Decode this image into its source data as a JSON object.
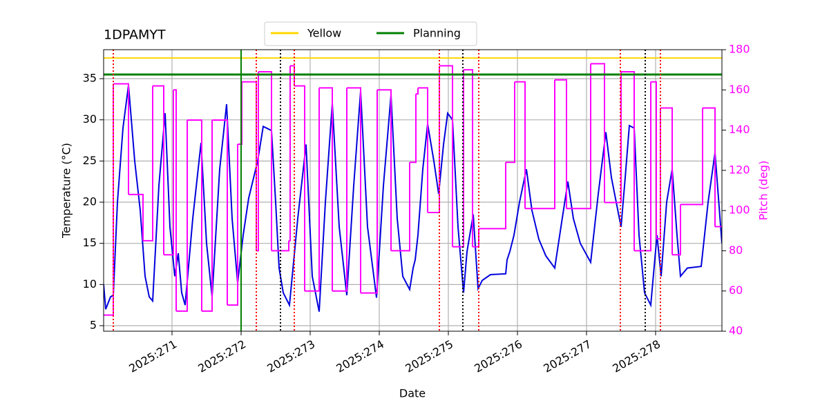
{
  "chart_data": {
    "type": "line",
    "title": "1DPAMYT",
    "x_label": "Date",
    "y_label": "Temperature (°C)",
    "y2_label": "Pitch (deg)",
    "xlim": [
      270.01,
      278.96
    ],
    "xticks": [
      {
        "value": 271,
        "label": "2025:271"
      },
      {
        "value": 272,
        "label": "2025:272"
      },
      {
        "value": 273,
        "label": "2025:273"
      },
      {
        "value": 274,
        "label": "2025:274"
      },
      {
        "value": 275,
        "label": "2025:275"
      },
      {
        "value": 276,
        "label": "2025:276"
      },
      {
        "value": 277,
        "label": "2025:277"
      },
      {
        "value": 278,
        "label": "2025:278"
      }
    ],
    "ylim": [
      4.33,
      38.52
    ],
    "yticks": [
      5,
      10,
      15,
      20,
      25,
      30,
      35
    ],
    "y2lim": [
      40,
      180
    ],
    "y2ticks": [
      40,
      60,
      80,
      100,
      120,
      140,
      160,
      180
    ],
    "grid": true,
    "legend": "upper center",
    "series": [
      {
        "color": "#0000dd",
        "step": false,
        "x": [
          270.01,
          270.04,
          270.11,
          270.15,
          270.21,
          270.29,
          270.37,
          270.46,
          270.54,
          270.61,
          270.67,
          270.72,
          270.81,
          270.9,
          270.97,
          271.04,
          271.09,
          271.14,
          271.19,
          271.3,
          271.42,
          271.5,
          271.58,
          271.69,
          271.79,
          271.87,
          271.95,
          272.03,
          272.11,
          272.24,
          272.32,
          272.44,
          272.5,
          272.55,
          272.61,
          272.7,
          272.82,
          272.94,
          273.03,
          273.13,
          273.22,
          273.32,
          273.42,
          273.53,
          273.63,
          273.73,
          273.83,
          273.96,
          274.06,
          274.17,
          274.26,
          274.34,
          274.44,
          274.49,
          274.52,
          274.56,
          274.63,
          274.7,
          274.79,
          274.86,
          274.93,
          274.99,
          275.06,
          275.14,
          275.22,
          275.27,
          275.36,
          275.43,
          275.49,
          275.61,
          275.83,
          275.85,
          275.89,
          275.95,
          276.03,
          276.13,
          276.21,
          276.31,
          276.41,
          276.54,
          276.63,
          276.73,
          276.81,
          276.91,
          277.06,
          277.17,
          277.28,
          277.36,
          277.5,
          277.56,
          277.62,
          277.69,
          277.76,
          277.84,
          277.93,
          278.02,
          278.08,
          278.16,
          278.24,
          278.31,
          278.36,
          278.46,
          278.66,
          278.76,
          278.86,
          278.96
        ],
        "values": [
          10,
          7,
          8.5,
          8.7,
          20,
          29,
          34.2,
          25,
          19,
          11,
          8.5,
          8,
          22,
          30.8,
          17,
          11,
          13.8,
          9,
          7.5,
          18,
          27.2,
          15,
          8.5,
          24,
          31.9,
          18,
          10.2,
          16,
          20.5,
          25,
          29.2,
          28.7,
          20,
          12,
          9,
          7.5,
          18,
          27,
          11,
          6.7,
          20,
          32,
          17,
          8.7,
          22,
          33.5,
          17,
          8.4,
          22,
          33,
          18,
          11,
          9.4,
          12,
          13,
          16,
          24,
          29.5,
          25,
          21,
          27,
          30.8,
          30,
          17,
          9,
          14,
          18.5,
          9.5,
          10.5,
          11.2,
          11.3,
          13,
          14,
          16,
          20,
          24,
          19,
          15.5,
          13.5,
          12,
          17,
          22.5,
          18,
          15,
          12.7,
          21,
          28.5,
          23,
          17,
          23,
          29.3,
          29,
          16,
          9,
          7.5,
          16,
          11,
          20,
          24,
          16,
          11,
          12,
          12.2,
          20,
          26,
          15
        ]
      },
      {
        "color": "magenta",
        "axis": "y2",
        "step": true,
        "x": [
          270.01,
          270.15,
          270.37,
          270.58,
          270.72,
          270.88,
          271.02,
          271.06,
          271.22,
          271.43,
          271.58,
          271.8,
          271.95,
          272.01,
          272.22,
          272.25,
          272.44,
          272.69,
          272.71,
          272.77,
          272.92,
          273.13,
          273.32,
          273.53,
          273.73,
          273.97,
          274.17,
          274.44,
          274.53,
          274.56,
          274.7,
          274.87,
          275.06,
          275.22,
          275.35,
          275.44,
          275.83,
          275.96,
          276.11,
          276.54,
          276.71,
          277.06,
          277.26,
          277.5,
          277.69,
          277.93,
          278.01,
          278.07,
          278.24,
          278.36,
          278.68,
          278.86,
          278.96
        ],
        "values": [
          48,
          163,
          108,
          85,
          162,
          78,
          160,
          50,
          145,
          50,
          145,
          53,
          133,
          164,
          80,
          169,
          80,
          85,
          172,
          162,
          60,
          161,
          60,
          161,
          59,
          160,
          80,
          124,
          158,
          161,
          99,
          172,
          82,
          170,
          82,
          91,
          124,
          164,
          101,
          165,
          101,
          173,
          104,
          169,
          80,
          164,
          86,
          151,
          78,
          103,
          151,
          92,
          92
        ]
      }
    ],
    "hlines": [
      {
        "name": "Yellow",
        "y": 37.5,
        "color": "gold"
      },
      {
        "name": "Planning",
        "y": 35.5,
        "color": "green"
      }
    ],
    "vlines": [
      {
        "x": 272.0,
        "color": "green",
        "dotted": false
      },
      {
        "x": 270.15,
        "color": "red",
        "dotted": true
      },
      {
        "x": 272.22,
        "color": "red",
        "dotted": true
      },
      {
        "x": 272.77,
        "color": "red",
        "dotted": true
      },
      {
        "x": 274.87,
        "color": "red",
        "dotted": true
      },
      {
        "x": 275.44,
        "color": "red",
        "dotted": true
      },
      {
        "x": 277.49,
        "color": "red",
        "dotted": true
      },
      {
        "x": 278.07,
        "color": "red",
        "dotted": true
      },
      {
        "x": 272.57,
        "color": "black",
        "dotted": true
      },
      {
        "x": 275.21,
        "color": "black",
        "dotted": true
      },
      {
        "x": 277.85,
        "color": "black",
        "dotted": true
      }
    ]
  }
}
